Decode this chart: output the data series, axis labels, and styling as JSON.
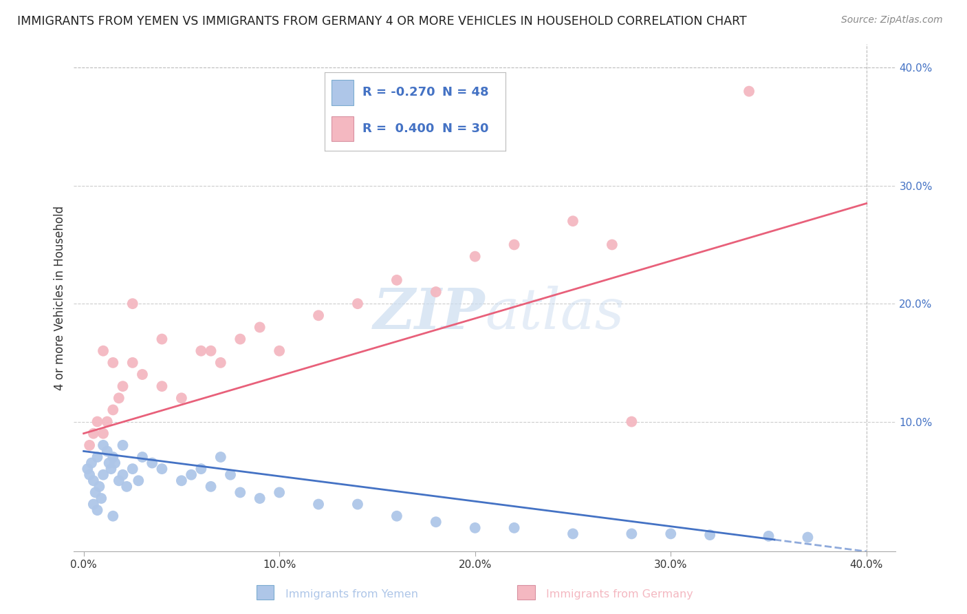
{
  "title": "IMMIGRANTS FROM YEMEN VS IMMIGRANTS FROM GERMANY 4 OR MORE VEHICLES IN HOUSEHOLD CORRELATION CHART",
  "source": "Source: ZipAtlas.com",
  "ylabel": "4 or more Vehicles in Household",
  "xlabel_legend1": "Immigrants from Yemen",
  "xlabel_legend2": "Immigrants from Germany",
  "R_yemen": -0.27,
  "N_yemen": 48,
  "R_germany": 0.4,
  "N_germany": 30,
  "color_yemen": "#aec6e8",
  "color_germany": "#f4b8c1",
  "color_trend_yemen": "#4472c4",
  "color_trend_germany": "#e8607a",
  "color_axis_text": "#4472c4",
  "color_dark_text": "#333333",
  "watermark_color": "#ccddf0",
  "yemen_x": [
    0.002,
    0.003,
    0.004,
    0.005,
    0.006,
    0.007,
    0.008,
    0.009,
    0.01,
    0.01,
    0.012,
    0.013,
    0.014,
    0.015,
    0.016,
    0.018,
    0.02,
    0.02,
    0.022,
    0.025,
    0.028,
    0.03,
    0.035,
    0.04,
    0.05,
    0.055,
    0.06,
    0.065,
    0.07,
    0.075,
    0.08,
    0.09,
    0.1,
    0.12,
    0.14,
    0.16,
    0.18,
    0.2,
    0.22,
    0.25,
    0.28,
    0.3,
    0.32,
    0.35,
    0.37,
    0.005,
    0.007,
    0.015
  ],
  "yemen_y": [
    0.06,
    0.055,
    0.065,
    0.05,
    0.04,
    0.07,
    0.045,
    0.035,
    0.08,
    0.055,
    0.075,
    0.065,
    0.06,
    0.07,
    0.065,
    0.05,
    0.08,
    0.055,
    0.045,
    0.06,
    0.05,
    0.07,
    0.065,
    0.06,
    0.05,
    0.055,
    0.06,
    0.045,
    0.07,
    0.055,
    0.04,
    0.035,
    0.04,
    0.03,
    0.03,
    0.02,
    0.015,
    0.01,
    0.01,
    0.005,
    0.005,
    0.005,
    0.004,
    0.003,
    0.002,
    0.03,
    0.025,
    0.02
  ],
  "germany_x": [
    0.003,
    0.005,
    0.007,
    0.01,
    0.012,
    0.015,
    0.018,
    0.02,
    0.025,
    0.03,
    0.04,
    0.05,
    0.06,
    0.07,
    0.08,
    0.09,
    0.1,
    0.12,
    0.14,
    0.16,
    0.18,
    0.2,
    0.22,
    0.25,
    0.27,
    0.01,
    0.015,
    0.025,
    0.04,
    0.065
  ],
  "germany_y": [
    0.08,
    0.09,
    0.1,
    0.09,
    0.1,
    0.11,
    0.12,
    0.13,
    0.15,
    0.14,
    0.13,
    0.12,
    0.16,
    0.15,
    0.17,
    0.18,
    0.16,
    0.19,
    0.2,
    0.22,
    0.21,
    0.24,
    0.25,
    0.27,
    0.25,
    0.16,
    0.15,
    0.2,
    0.17,
    0.16
  ],
  "germany_outlier_x": [
    0.34
  ],
  "germany_outlier_y": [
    0.38
  ],
  "germany_outlier2_x": [
    0.28
  ],
  "germany_outlier2_y": [
    0.1
  ],
  "xlim": [
    -0.005,
    0.415
  ],
  "ylim": [
    -0.01,
    0.42
  ],
  "trend_yemen_x0": 0.0,
  "trend_yemen_y0": 0.075,
  "trend_yemen_x1": 0.4,
  "trend_yemen_y1": -0.01,
  "trend_germany_x0": 0.0,
  "trend_germany_y0": 0.09,
  "trend_germany_x1": 0.4,
  "trend_germany_y1": 0.285
}
